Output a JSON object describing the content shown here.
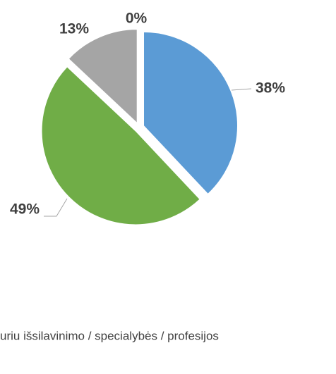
{
  "chart_data": {
    "type": "pie",
    "values": [
      38,
      49,
      13,
      0
    ],
    "value_labels": [
      "38%",
      "49%",
      "13%",
      "0%"
    ],
    "colors": [
      "#5b9bd5",
      "#70ad47",
      "#a5a5a5",
      "#ffc000"
    ],
    "legend_text": "uriu išsilavinimo / specialybės / profesijos"
  }
}
